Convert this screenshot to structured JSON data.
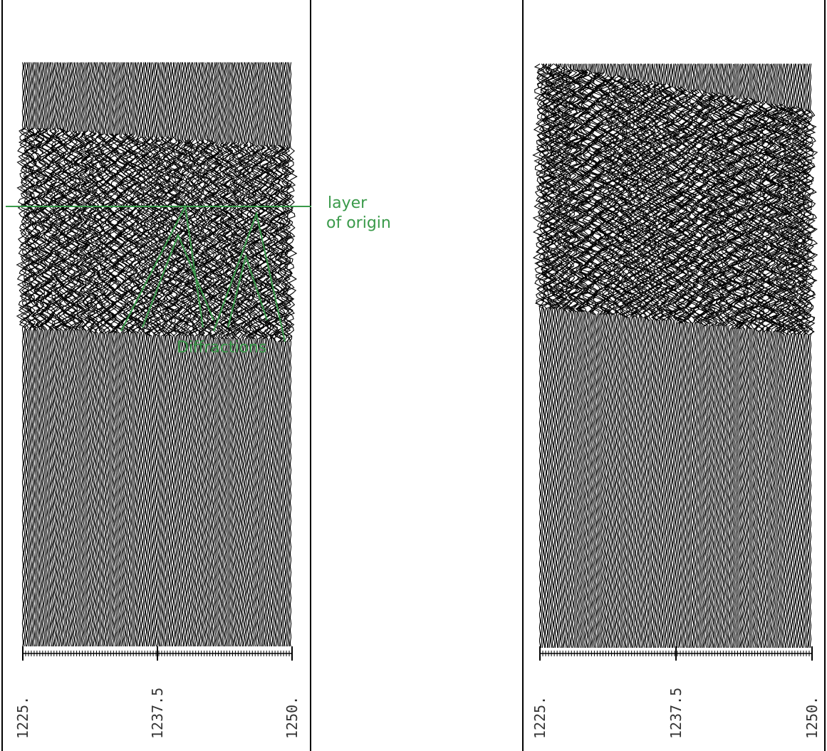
{
  "panels": [
    {
      "axis_labels": [
        "1225.",
        "1237.5",
        "1250."
      ],
      "annotations": {
        "layer_line1": "layer",
        "layer_line2": "of origin",
        "diffractions": "Diffractions"
      }
    },
    {
      "axis_labels": [
        "1225.",
        "1237.5",
        "1250."
      ]
    }
  ]
}
